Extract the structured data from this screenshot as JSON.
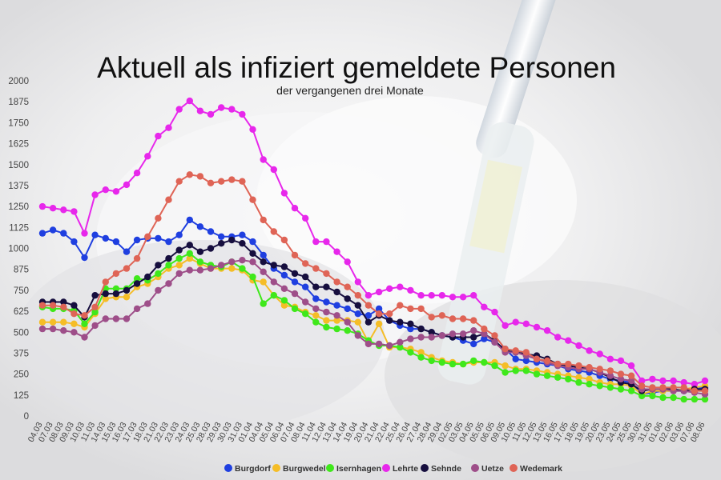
{
  "chart_data": {
    "type": "line",
    "title": "Aktuell als infiziert gemeldete Personen",
    "subtitle": "der vergangenen drei Monate",
    "xlabel": "",
    "ylabel": "",
    "ylim": [
      0,
      2000
    ],
    "yticks": [
      0,
      125,
      250,
      375,
      500,
      625,
      750,
      875,
      1000,
      1125,
      1250,
      1375,
      1500,
      1625,
      1750,
      1875,
      2000
    ],
    "grid": false,
    "legend_position": "bottom",
    "x": [
      "04.03",
      "07.03",
      "08.03",
      "09.03",
      "10.03",
      "11.03",
      "14.03",
      "15.03",
      "16.03",
      "17.03",
      "18.03",
      "21.03",
      "22.03",
      "23.03",
      "24.03",
      "25.03",
      "28.03",
      "29.03",
      "30.03",
      "31.03",
      "01.04",
      "04.04",
      "05.04",
      "06.04",
      "07.04",
      "08.04",
      "11.04",
      "12.04",
      "13.04",
      "14.04",
      "19.04",
      "20.04",
      "21.04",
      "22.04",
      "25.04",
      "26.04",
      "27.04",
      "28.04",
      "29.04",
      "02.05",
      "03.05",
      "04.05",
      "05.05",
      "06.05",
      "09.05",
      "10.05",
      "11.05",
      "12.05",
      "13.05",
      "16.05",
      "17.05",
      "18.05",
      "19.05",
      "20.05",
      "23.05",
      "24.05",
      "25.05",
      "30.05",
      "31.05",
      "01.06",
      "02.06",
      "03.06",
      "07.06",
      "08.06"
    ],
    "xlabels": [
      "04.03",
      "07.03",
      "08.03",
      "09.03",
      "10.03",
      "11.03",
      "14.03",
      "15.03",
      "16.03",
      "17.03",
      "18.03",
      "21.03",
      "22.03",
      "23.03",
      "24.03",
      "25.03",
      "28.03",
      "29.03",
      "30.03",
      "31.03",
      "01.04",
      "04.04",
      "05.04",
      "06.04",
      "07.04",
      "08.04",
      "11.04",
      "12.04",
      "13.04",
      "14.04",
      "19.04",
      "20.04",
      "21.04",
      "22.04",
      "25.04",
      "26.04",
      "27.04",
      "28.04",
      "29.04",
      "02.05",
      "03.05",
      "04.05",
      "05.05",
      "06.05",
      "09.05",
      "10.05",
      "11.05",
      "12.05",
      "13.05",
      "16.05",
      "17.05",
      "18.05",
      "19.05",
      "20.05",
      "23.05",
      "24.05",
      "25.05",
      "30.05",
      "31.05",
      "01.06",
      "02.06",
      "03.06",
      "07.06",
      "08.06"
    ],
    "series": [
      {
        "name": "Burgdorf",
        "color": "#1f3fe0",
        "values": [
          1090,
          1110,
          1090,
          1040,
          945,
          1080,
          1060,
          1040,
          980,
          1050,
          1060,
          1060,
          1040,
          1080,
          1170,
          1130,
          1100,
          1070,
          1070,
          1080,
          1040,
          960,
          880,
          840,
          800,
          770,
          700,
          680,
          660,
          640,
          610,
          600,
          640,
          570,
          540,
          520,
          520,
          500,
          480,
          470,
          450,
          430,
          460,
          440,
          400,
          340,
          330,
          320,
          310,
          300,
          280,
          270,
          260,
          240,
          220,
          210,
          200,
          130,
          140,
          150,
          150,
          150,
          160,
          170
        ]
      },
      {
        "name": "Burgwedel",
        "color": "#f5bd27",
        "values": [
          560,
          560,
          560,
          550,
          530,
          610,
          700,
          710,
          710,
          770,
          790,
          830,
          880,
          900,
          940,
          910,
          880,
          880,
          880,
          870,
          810,
          800,
          720,
          660,
          650,
          620,
          600,
          570,
          570,
          570,
          560,
          440,
          550,
          410,
          410,
          400,
          380,
          350,
          330,
          320,
          310,
          320,
          320,
          320,
          300,
          280,
          280,
          270,
          260,
          250,
          240,
          230,
          220,
          200,
          190,
          190,
          180,
          130,
          150,
          150,
          150,
          160,
          170,
          180
        ]
      },
      {
        "name": "Isernhagen",
        "color": "#3fe81b",
        "values": [
          650,
          640,
          640,
          630,
          550,
          620,
          760,
          760,
          760,
          820,
          810,
          850,
          900,
          940,
          970,
          920,
          900,
          890,
          920,
          880,
          830,
          670,
          720,
          690,
          640,
          610,
          560,
          530,
          520,
          510,
          490,
          450,
          420,
          420,
          410,
          380,
          350,
          330,
          320,
          310,
          310,
          330,
          320,
          300,
          260,
          270,
          270,
          250,
          240,
          230,
          220,
          200,
          190,
          180,
          170,
          160,
          150,
          120,
          120,
          110,
          110,
          100,
          100,
          100
        ]
      },
      {
        "name": "Lehrte",
        "color": "#e727eb",
        "values": [
          1250,
          1240,
          1230,
          1220,
          1090,
          1320,
          1350,
          1340,
          1380,
          1450,
          1550,
          1670,
          1720,
          1830,
          1880,
          1820,
          1800,
          1840,
          1830,
          1800,
          1710,
          1530,
          1470,
          1330,
          1240,
          1180,
          1040,
          1040,
          980,
          920,
          800,
          720,
          740,
          760,
          770,
          750,
          720,
          720,
          720,
          710,
          710,
          720,
          650,
          620,
          540,
          560,
          550,
          530,
          510,
          470,
          450,
          420,
          390,
          370,
          340,
          330,
          300,
          210,
          220,
          210,
          210,
          200,
          190,
          210
        ]
      },
      {
        "name": "Sehnde",
        "color": "#160e3e",
        "values": [
          680,
          680,
          680,
          660,
          590,
          720,
          730,
          730,
          750,
          790,
          830,
          900,
          940,
          990,
          1020,
          980,
          1000,
          1030,
          1050,
          1030,
          970,
          920,
          900,
          890,
          850,
          830,
          770,
          770,
          740,
          700,
          660,
          560,
          600,
          570,
          560,
          550,
          520,
          500,
          480,
          470,
          470,
          470,
          490,
          450,
          390,
          380,
          370,
          360,
          340,
          310,
          300,
          290,
          280,
          260,
          230,
          200,
          190,
          150,
          160,
          160,
          160,
          150,
          160,
          160
        ]
      },
      {
        "name": "Uetze",
        "color": "#9e4e89",
        "values": [
          520,
          520,
          510,
          500,
          470,
          540,
          580,
          580,
          580,
          640,
          670,
          750,
          790,
          850,
          870,
          870,
          880,
          900,
          920,
          930,
          920,
          860,
          800,
          760,
          730,
          680,
          640,
          620,
          600,
          560,
          480,
          430,
          430,
          420,
          440,
          460,
          470,
          470,
          480,
          490,
          490,
          510,
          490,
          440,
          380,
          380,
          360,
          340,
          320,
          300,
          290,
          280,
          280,
          260,
          240,
          220,
          210,
          160,
          160,
          160,
          150,
          150,
          140,
          130
        ]
      },
      {
        "name": "Wedemark",
        "color": "#df6456",
        "values": [
          660,
          660,
          650,
          610,
          600,
          650,
          800,
          850,
          880,
          940,
          1070,
          1180,
          1290,
          1400,
          1440,
          1430,
          1390,
          1400,
          1410,
          1400,
          1290,
          1170,
          1100,
          1050,
          960,
          910,
          880,
          850,
          800,
          770,
          720,
          660,
          610,
          610,
          660,
          640,
          640,
          590,
          600,
          580,
          580,
          570,
          520,
          480,
          400,
          390,
          380,
          340,
          330,
          310,
          310,
          300,
          290,
          280,
          270,
          250,
          240,
          180,
          170,
          170,
          170,
          170,
          150,
          150
        ]
      }
    ]
  }
}
